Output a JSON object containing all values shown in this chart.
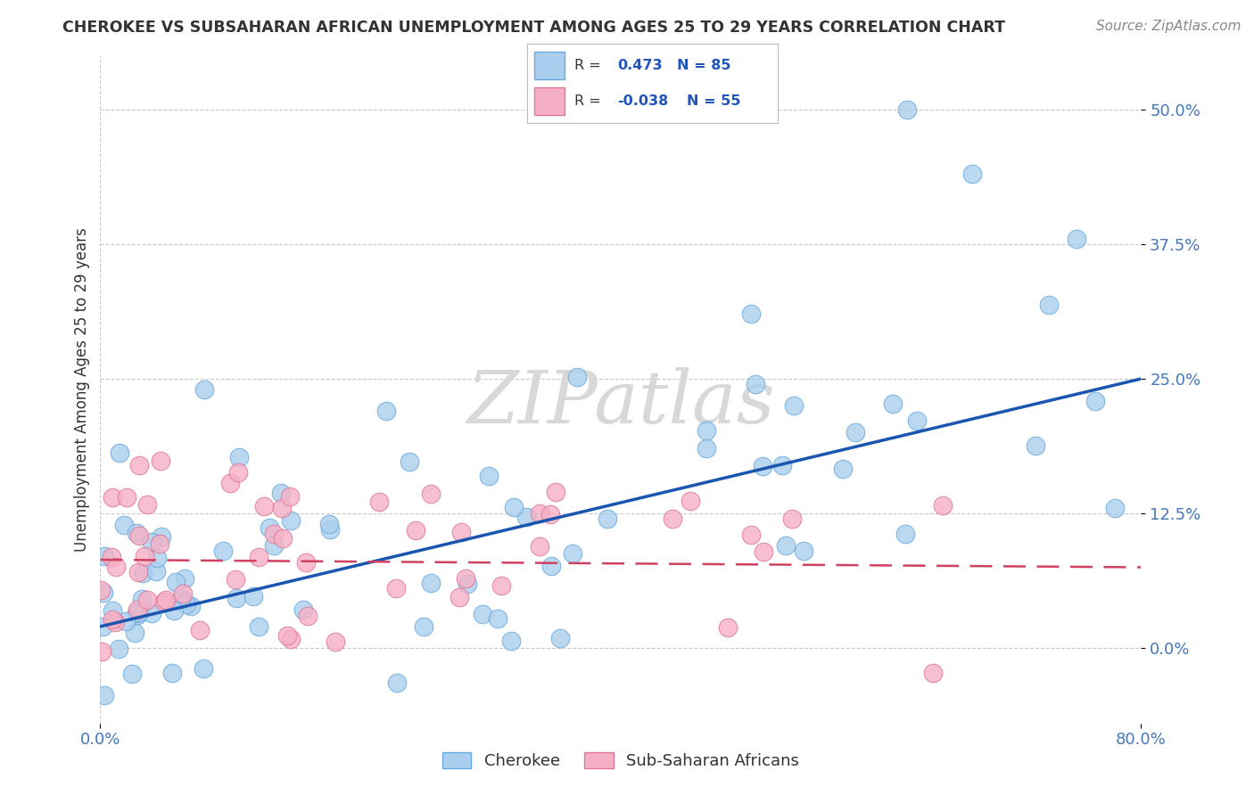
{
  "title": "CHEROKEE VS SUBSAHARAN AFRICAN UNEMPLOYMENT AMONG AGES 25 TO 29 YEARS CORRELATION CHART",
  "source": "Source: ZipAtlas.com",
  "ylabel": "Unemployment Among Ages 25 to 29 years",
  "xlim": [
    0.0,
    0.8
  ],
  "ylim": [
    -0.07,
    0.55
  ],
  "yticks": [
    0.0,
    0.125,
    0.25,
    0.375,
    0.5
  ],
  "ytick_labels": [
    "0.0%",
    "12.5%",
    "25.0%",
    "37.5%",
    "50.0%"
  ],
  "xticks": [
    0.0,
    0.8
  ],
  "xtick_labels": [
    "0.0%",
    "80.0%"
  ],
  "cherokee_color": "#aacfee",
  "cherokee_edge": "#6aaade",
  "subsaharan_color": "#f5b0c5",
  "subsaharan_edge": "#e07898",
  "cherokee_line_color": "#1a55b0",
  "subsaharan_line_color": "#d04060",
  "watermark": "ZIPatlas",
  "background_color": "#ffffff",
  "grid_color": "#c8c8c8",
  "title_color": "#333333",
  "source_color": "#888888",
  "tick_color": "#4477bb",
  "ylabel_color": "#333333",
  "ck_line_start_y": 0.02,
  "ck_line_end_y": 0.25,
  "ss_line_start_y": 0.082,
  "ss_line_end_y": 0.075
}
